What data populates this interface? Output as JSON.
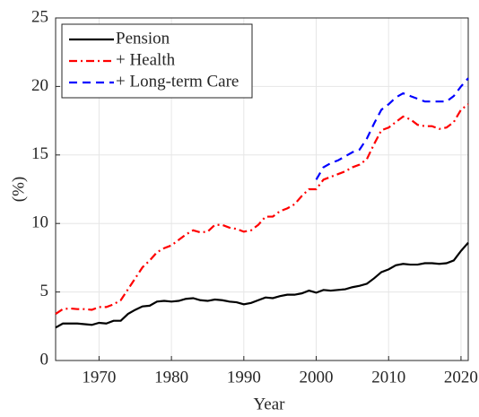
{
  "chart_data": {
    "type": "line",
    "xlabel": "Year",
    "ylabel": "(%)",
    "x": [
      1964,
      1965,
      1966,
      1967,
      1968,
      1969,
      1970,
      1971,
      1972,
      1973,
      1974,
      1975,
      1976,
      1977,
      1978,
      1979,
      1980,
      1981,
      1982,
      1983,
      1984,
      1985,
      1986,
      1987,
      1988,
      1989,
      1990,
      1991,
      1992,
      1993,
      1994,
      1995,
      1996,
      1997,
      1998,
      1999,
      2000,
      2001,
      2002,
      2003,
      2004,
      2005,
      2006,
      2007,
      2008,
      2009,
      2010,
      2011,
      2012,
      2013,
      2014,
      2015,
      2016,
      2017,
      2018,
      2019,
      2020,
      2021
    ],
    "series": [
      {
        "name": "Pension",
        "color": "#000000",
        "style": "solid",
        "values": [
          2.4,
          2.7,
          2.7,
          2.7,
          2.65,
          2.6,
          2.75,
          2.7,
          2.9,
          2.9,
          3.4,
          3.7,
          3.95,
          4.0,
          4.3,
          4.35,
          4.3,
          4.35,
          4.5,
          4.55,
          4.4,
          4.35,
          4.45,
          4.4,
          4.3,
          4.25,
          4.1,
          4.2,
          4.4,
          4.6,
          4.55,
          4.7,
          4.8,
          4.8,
          4.9,
          5.1,
          4.95,
          5.15,
          5.1,
          5.15,
          5.2,
          5.35,
          5.45,
          5.6,
          6.0,
          6.45,
          6.65,
          6.95,
          7.05,
          7.0,
          7.0,
          7.1,
          7.1,
          7.05,
          7.1,
          7.3,
          8.0,
          8.6
        ]
      },
      {
        "name": "+ Health",
        "color": "#ff0000",
        "style": "dashdot",
        "values": [
          3.4,
          3.75,
          3.8,
          3.75,
          3.75,
          3.7,
          3.9,
          3.9,
          4.1,
          4.4,
          5.2,
          6.0,
          6.8,
          7.3,
          7.9,
          8.2,
          8.4,
          8.8,
          9.2,
          9.5,
          9.35,
          9.4,
          9.9,
          9.9,
          9.7,
          9.6,
          9.4,
          9.5,
          9.9,
          10.5,
          10.5,
          10.9,
          11.1,
          11.4,
          12.0,
          12.5,
          12.5,
          13.2,
          13.4,
          13.6,
          13.8,
          14.1,
          14.3,
          14.7,
          15.8,
          16.8,
          17.0,
          17.4,
          17.8,
          17.6,
          17.2,
          17.1,
          17.1,
          16.9,
          17.0,
          17.4,
          18.3,
          18.7
        ]
      },
      {
        "name": "+ Long-term Care",
        "color": "#0000ff",
        "style": "dashed",
        "values": [
          null,
          null,
          null,
          null,
          null,
          null,
          null,
          null,
          null,
          null,
          null,
          null,
          null,
          null,
          null,
          null,
          null,
          null,
          null,
          null,
          null,
          null,
          null,
          null,
          null,
          null,
          null,
          null,
          null,
          null,
          null,
          null,
          null,
          null,
          null,
          null,
          13.2,
          14.1,
          14.4,
          14.6,
          14.9,
          15.2,
          15.4,
          16.2,
          17.3,
          18.3,
          18.7,
          19.2,
          19.5,
          19.3,
          19.1,
          18.9,
          18.9,
          18.9,
          18.9,
          19.3,
          20.0,
          20.6
        ]
      }
    ],
    "xlim": [
      1964,
      2021
    ],
    "xticks": [
      1970,
      1980,
      1990,
      2000,
      2010,
      2020
    ],
    "ylim": [
      0,
      25
    ],
    "yticks": [
      0,
      5,
      10,
      15,
      20,
      25
    ],
    "grid": true,
    "legend_position": "upper left"
  }
}
